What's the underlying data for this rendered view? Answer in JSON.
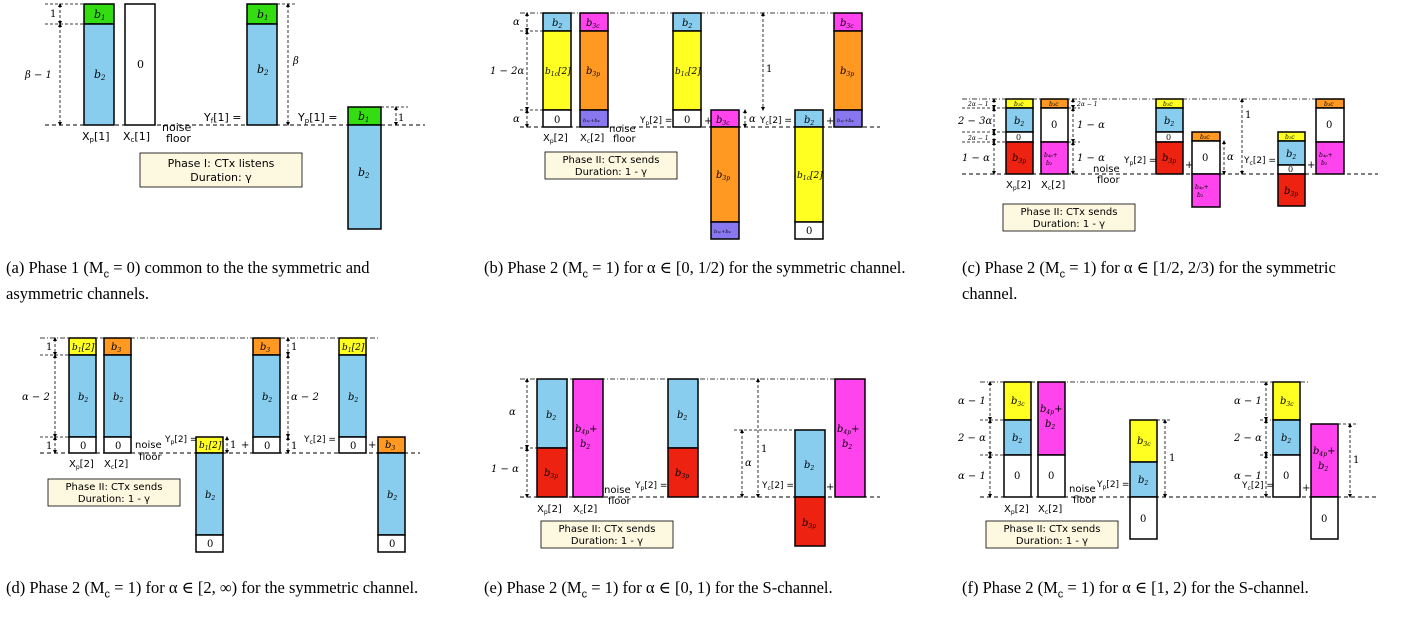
{
  "colors": {
    "green": "#33dd11",
    "blue": "#88ccee",
    "yellow": "#ffff22",
    "orange": "#ff9922",
    "magenta": "#ff44ee",
    "red": "#ee2211",
    "purple": "#8877ee",
    "white": "#ffffff",
    "boxfill": "#fdf8e0"
  },
  "legend": {
    "noise": "noise",
    "floor": "floor",
    "phase1_title": "Phase I: CTx listens",
    "phase1_dur": "Duration: γ",
    "phase2_title": "Phase II: CTx sends",
    "phase2_dur": "Duration: 1 - γ"
  },
  "blocks": {
    "b1": "b",
    "b1_sub": "1",
    "b2": "b",
    "b2_sub": "2",
    "b3c": "b",
    "b3c_sub": "3c",
    "b3p": "b",
    "b3p_sub": "3p",
    "b1c2": "b",
    "b1c2_sub": "1c",
    "b1c2_arg": "[2]",
    "b12": "b",
    "b12_sub": "1",
    "b12_arg": "[2]",
    "b3": "b",
    "b3_sub": "3",
    "b4p": "b",
    "b4p_sub": "4p",
    "plus": "+",
    "zero": "0",
    "eq": "=",
    "one": "1"
  },
  "labels": {
    "Xp1": "X",
    "Xp1_sub": "p",
    "Xp1_arg": "[1]",
    "Xc1": "X",
    "Xc1_sub": "c",
    "Xc1_arg": "[1]",
    "Yf1": "Y",
    "Yf1_sub": "f",
    "Yf1_arg": "[1] =",
    "Yp1": "Y",
    "Yp1_sub": "p",
    "Yp1_arg": "[1] =",
    "Xp2": "X",
    "Xp2_sub": "p",
    "Xp2_arg": "[2]",
    "Xc2": "X",
    "Xc2_sub": "c",
    "Xc2_arg": "[2]",
    "Yp2": "Y",
    "Yp2_sub": "p",
    "Yp2_arg": "[2] =",
    "Yc2": "Y",
    "Yc2_sub": "c",
    "Yc2_arg": "[2] ="
  },
  "dims": {
    "beta": "β",
    "beta_minus_1": "β − 1",
    "alpha": "α",
    "one_minus_2alpha": "1 − 2α",
    "one_minus_alpha": "1 − α",
    "two_minus_3alpha": "2 − 3α",
    "two_alpha_minus_1": "2α − 1",
    "alpha_minus_2": "α − 2",
    "alpha_minus_1": "α − 1",
    "two_minus_alpha": "2 − α",
    "one": "1"
  },
  "captions": {
    "a": "(a) Phase 1 (M",
    "a_sub": "c",
    "a_rest": " = 0) common to the the symmetric and asymmetric channels.",
    "b": "(b) Phase 2 (M",
    "b_sub": "c",
    "b_rest": " = 1) for α ∈ [0, 1/2) for the symmetric channel.",
    "c": "(c) Phase 2 (M",
    "c_sub": "c",
    "c_rest": " = 1) for α ∈ [1/2, 2/3) for the symmetric channel.",
    "d": "(d) Phase 2 (M",
    "d_sub": "c",
    "d_rest": " = 1) for α ∈ [2, ∞) for the symmetric channel.",
    "e": "(e) Phase 2 (M",
    "e_sub": "c",
    "e_rest": " = 1) for α ∈ [0, 1) for the S-channel.",
    "f": "(f) Phase 2 (M",
    "f_sub": "c",
    "f_rest": " = 1) for α ∈ [1, 2) for the S-channel."
  }
}
